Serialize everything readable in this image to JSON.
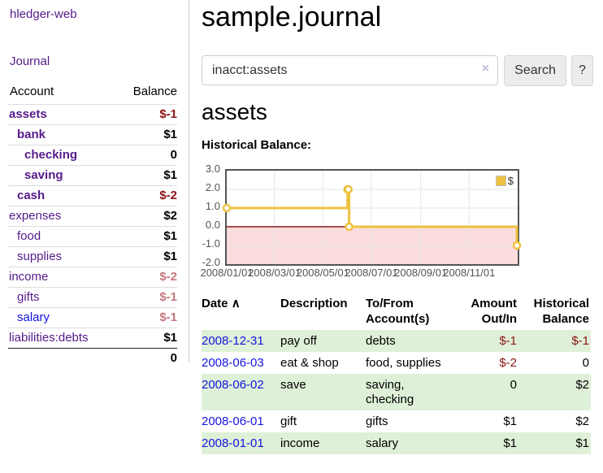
{
  "app": {
    "title": "hledger-web",
    "nav_journal": "Journal"
  },
  "colors": {
    "link_purple": "#551a8b",
    "link_blue": "#1414e0",
    "negative": "#8b1414",
    "negative_soft": "#c4777e",
    "row_green": "#dff0d8",
    "series_gold": "#edc240",
    "negative_region": "#fbdcdc",
    "zero_line": "#8b1a1a",
    "gridline": "#e6e6e6",
    "plot_border": "#545454"
  },
  "sidebar": {
    "header": {
      "account": "Account",
      "balance": "Balance"
    },
    "accounts": [
      {
        "name": "assets",
        "balance": "$-1",
        "indent": 0,
        "bold": true,
        "neg": "strong"
      },
      {
        "name": "bank",
        "balance": "$1",
        "indent": 1,
        "bold": true
      },
      {
        "name": "checking",
        "balance": "0",
        "indent": 2,
        "bold": true
      },
      {
        "name": "saving",
        "balance": "$1",
        "indent": 2,
        "bold": true
      },
      {
        "name": "cash",
        "balance": "$-2",
        "indent": 1,
        "bold": true,
        "neg": "strong"
      },
      {
        "name": "expenses",
        "balance": "$2",
        "indent": 0
      },
      {
        "name": "food",
        "balance": "$1",
        "indent": 1
      },
      {
        "name": "supplies",
        "balance": "$1",
        "indent": 1
      },
      {
        "name": "income",
        "balance": "$-2",
        "indent": 0,
        "neg": "soft"
      },
      {
        "name": "gifts",
        "balance": "$-1",
        "indent": 1,
        "neg": "soft"
      },
      {
        "name": "salary",
        "balance": "$-1",
        "indent": 1,
        "neg": "soft",
        "blue": true
      },
      {
        "name": "liabilities:debts",
        "balance": "$1",
        "indent": 0
      }
    ],
    "total": "0"
  },
  "main": {
    "title": "sample.journal",
    "search": {
      "value": "inacct:assets",
      "clear_icon": "×",
      "button": "Search",
      "help_button": "?"
    },
    "account_heading": "assets",
    "chart_label": "Historical Balance:"
  },
  "chart_data": {
    "type": "line",
    "step": true,
    "title": "Historical Balance:",
    "legend": "$",
    "legend_position": "top-right",
    "grid": true,
    "ylim": [
      -2,
      3
    ],
    "x_range": [
      "2008-01-01",
      "2009-01-01"
    ],
    "y_ticks": [
      "3.0",
      "2.0",
      "1.0",
      "0.0",
      "-1.0",
      "-2.0"
    ],
    "x_ticks": [
      "2008/01/01",
      "2008/03/01",
      "2008/05/01",
      "2008/07/01",
      "2008/09/01",
      "2008/11/01"
    ],
    "series": [
      {
        "name": "$",
        "color": "#edc240",
        "points": [
          [
            "2008-01-01",
            1
          ],
          [
            "2008-06-01",
            2
          ],
          [
            "2008-06-02",
            2
          ],
          [
            "2008-06-03",
            0
          ],
          [
            "2008-12-31",
            -1
          ]
        ]
      }
    ]
  },
  "register": {
    "headers": {
      "date": "Date",
      "sort_icon": "∧",
      "description": "Description",
      "accounts": "To/From\nAccount(s)",
      "amount": "Amount\nOut/In",
      "balance": "Historical\nBalance"
    },
    "rows": [
      {
        "date": "2008-12-31",
        "description": "pay off",
        "accounts": "debts",
        "amount": "$-1",
        "amount_neg": true,
        "balance": "$-1",
        "balance_neg": true
      },
      {
        "date": "2008-06-03",
        "description": "eat & shop",
        "accounts": "food, supplies",
        "amount": "$-2",
        "amount_neg": true,
        "balance": "0"
      },
      {
        "date": "2008-06-02",
        "description": "save",
        "accounts": "saving,\nchecking",
        "amount": "0",
        "balance": "$2"
      },
      {
        "date": "2008-06-01",
        "description": "gift",
        "accounts": "gifts",
        "amount": "$1",
        "balance": "$2"
      },
      {
        "date": "2008-01-01",
        "description": "income",
        "accounts": "salary",
        "amount": "$1",
        "balance": "$1"
      }
    ]
  }
}
